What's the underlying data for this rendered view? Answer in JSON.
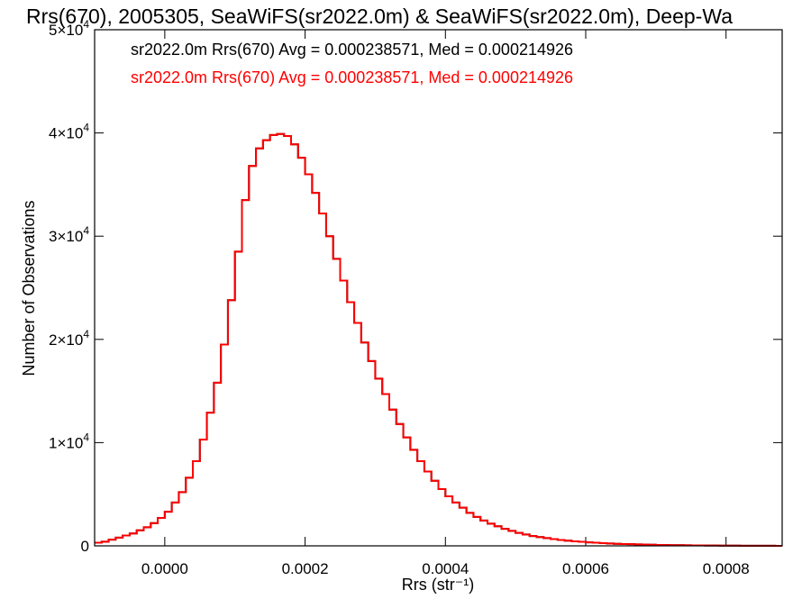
{
  "chart_data": {
    "type": "bar",
    "style": "step-histogram",
    "title": "Rrs(670), 2005305, SeaWiFS(sr2022.0m) & SeaWiFS(sr2022.0m), Deep-Wa",
    "xlabel": "Rrs (str⁻¹)",
    "ylabel": "Number of Observations",
    "xlim": [
      -0.0001,
      0.00088
    ],
    "ylim": [
      0,
      50000
    ],
    "grid": false,
    "legend_position": "top-left",
    "x_ticks": [
      {
        "value": 0.0,
        "label": "0.0000"
      },
      {
        "value": 0.0002,
        "label": "0.0002"
      },
      {
        "value": 0.0004,
        "label": "0.0004"
      },
      {
        "value": 0.0006,
        "label": "0.0006"
      },
      {
        "value": 0.0008,
        "label": "0.0008"
      }
    ],
    "y_ticks": [
      {
        "value": 0,
        "label": "0"
      },
      {
        "value": 10000,
        "base": "1×10",
        "exp": "4"
      },
      {
        "value": 20000,
        "base": "2×10",
        "exp": "4"
      },
      {
        "value": 30000,
        "base": "3×10",
        "exp": "4"
      },
      {
        "value": 40000,
        "base": "4×10",
        "exp": "4"
      },
      {
        "value": 50000,
        "base": "5×10",
        "exp": "4"
      }
    ],
    "series": [
      {
        "name": "sr2022.0m Rrs(670) Avg = 0.000238571, Med = 0.000214926",
        "color": "#000000"
      },
      {
        "name": "sr2022.0m Rrs(670) Avg = 0.000238571, Med = 0.000214926",
        "color": "#ff0000"
      }
    ],
    "histogram": {
      "bin_width": 1e-05,
      "x": [
        -0.0001,
        -9e-05,
        -8e-05,
        -7e-05,
        -6e-05,
        -5e-05,
        -4e-05,
        -3e-05,
        -2e-05,
        -1e-05,
        0.0,
        1e-05,
        2e-05,
        3e-05,
        4e-05,
        5e-05,
        6e-05,
        7e-05,
        8e-05,
        9e-05,
        0.0001,
        0.00011,
        0.00012,
        0.00013,
        0.00014,
        0.00015,
        0.00016,
        0.00017,
        0.00018,
        0.00019,
        0.0002,
        0.00021,
        0.00022,
        0.00023,
        0.00024,
        0.00025,
        0.00026,
        0.00027,
        0.00028,
        0.00029,
        0.0003,
        0.00031,
        0.00032,
        0.00033,
        0.00034,
        0.00035,
        0.00036,
        0.00037,
        0.00038,
        0.00039,
        0.0004,
        0.00041,
        0.00042,
        0.00043,
        0.00044,
        0.00045,
        0.00046,
        0.00047,
        0.00048,
        0.00049,
        0.0005,
        0.00051,
        0.00052,
        0.00053,
        0.00054,
        0.00055,
        0.00056,
        0.00057,
        0.00058,
        0.00059,
        0.0006,
        0.00061,
        0.00062,
        0.00063,
        0.00064,
        0.00065,
        0.00066,
        0.00067,
        0.00068,
        0.00069,
        0.0007,
        0.00071,
        0.00072,
        0.00073,
        0.00074,
        0.00075,
        0.00076,
        0.00077,
        0.00078,
        0.00079,
        0.0008,
        0.00081,
        0.00082,
        0.00083,
        0.00084,
        0.00085,
        0.00086,
        0.00087
      ],
      "counts": [
        300,
        400,
        600,
        800,
        1000,
        1200,
        1500,
        1800,
        2200,
        2700,
        3300,
        4200,
        5200,
        6600,
        8200,
        10300,
        12900,
        15800,
        19500,
        23800,
        28500,
        33500,
        36800,
        38500,
        39300,
        39800,
        39900,
        39700,
        38900,
        37600,
        36000,
        34200,
        32200,
        30000,
        27800,
        25700,
        23600,
        21600,
        19700,
        17900,
        16200,
        14700,
        13200,
        11800,
        10500,
        9300,
        8200,
        7200,
        6300,
        5500,
        4800,
        4200,
        3700,
        3200,
        2800,
        2450,
        2150,
        1900,
        1650,
        1450,
        1250,
        1100,
        950,
        850,
        750,
        650,
        570,
        500,
        440,
        390,
        340,
        300,
        260,
        230,
        200,
        180,
        160,
        140,
        120,
        105,
        90,
        80,
        70,
        60,
        50,
        45,
        40,
        35,
        30,
        25,
        20,
        18,
        15,
        12,
        10,
        8,
        6,
        5
      ]
    }
  }
}
